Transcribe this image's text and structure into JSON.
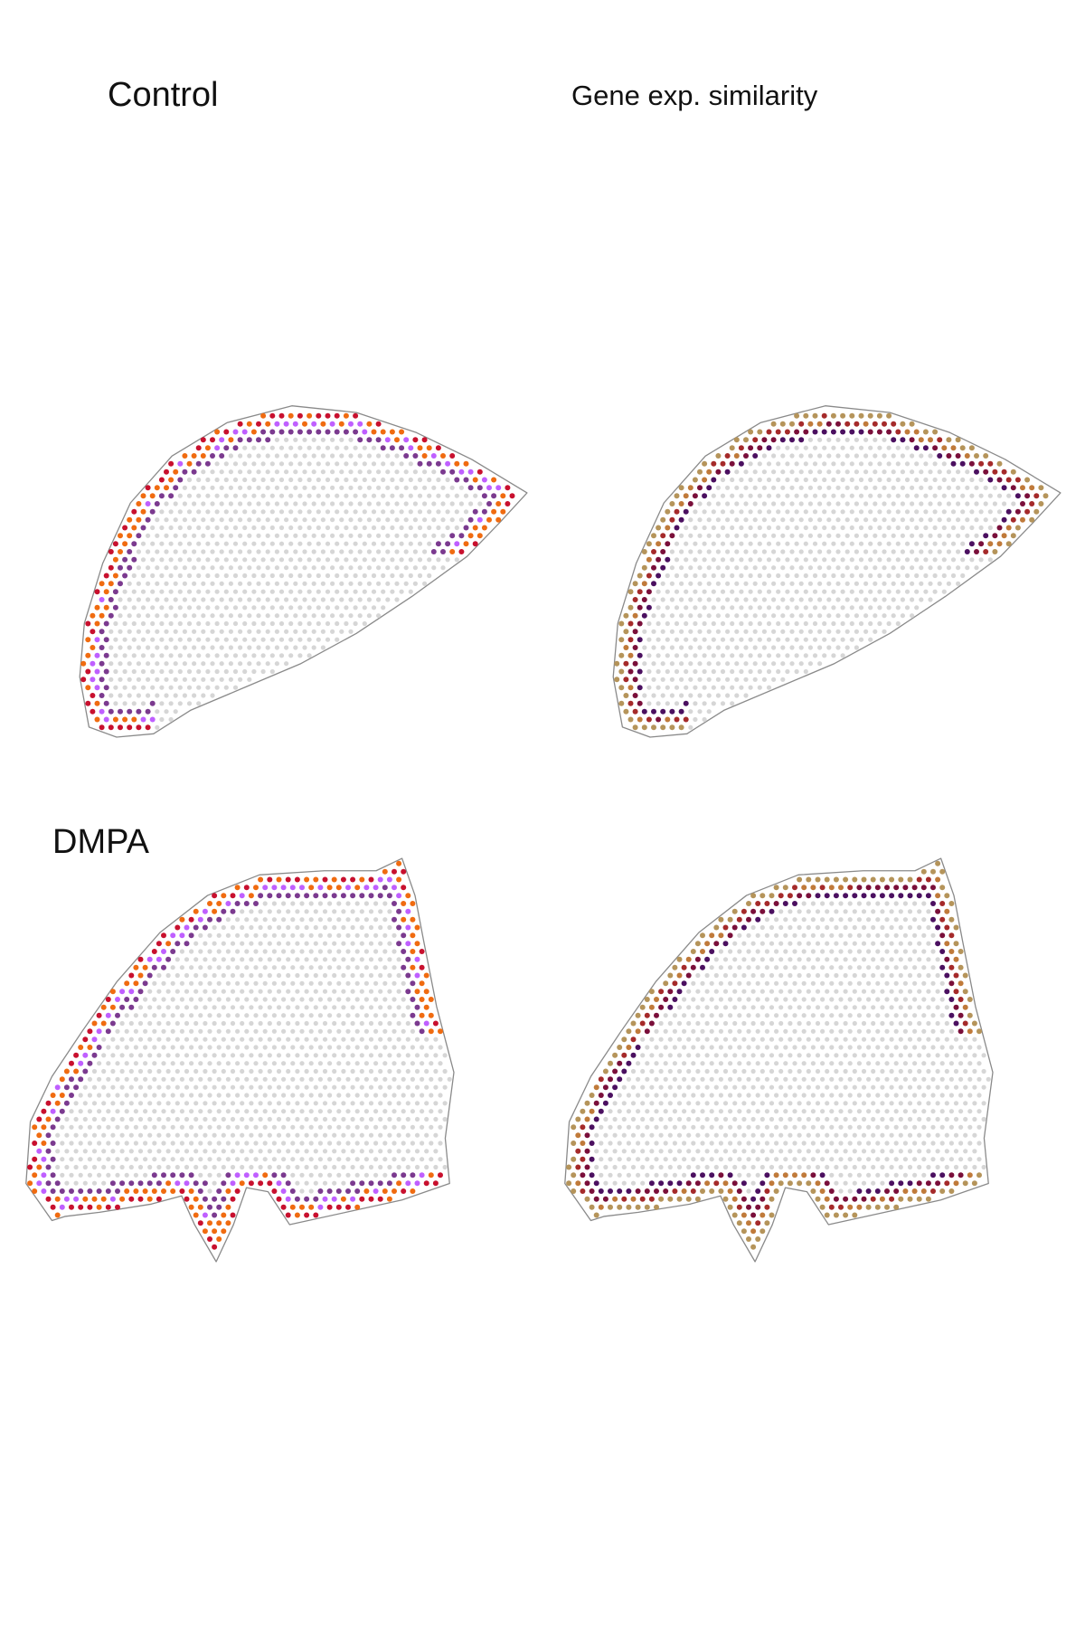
{
  "figure": {
    "labels": {
      "control": "Control",
      "similarity": "Gene exp. similarity",
      "dmpa": "DMPA"
    },
    "colors": {
      "background_spot": "#d6d6d6",
      "outline": "#8a8a8a",
      "cluster_palette": [
        "#c8102e",
        "#f06b10",
        "#bf5fff",
        "#7b3a8f"
      ],
      "similarity_palette": [
        "#b5945a",
        "#a52a2a",
        "#7a0f3a",
        "#4b1060",
        "#c07a3a"
      ]
    },
    "panels": [
      {
        "name": "control-clusters",
        "condition": "Control",
        "coloring": "cluster"
      },
      {
        "name": "control-similarity",
        "condition": "Control",
        "coloring": "similarity"
      },
      {
        "name": "dmpa-clusters",
        "condition": "DMPA",
        "coloring": "cluster"
      },
      {
        "name": "dmpa-similarity",
        "condition": "DMPA",
        "coloring": "similarity"
      }
    ]
  }
}
